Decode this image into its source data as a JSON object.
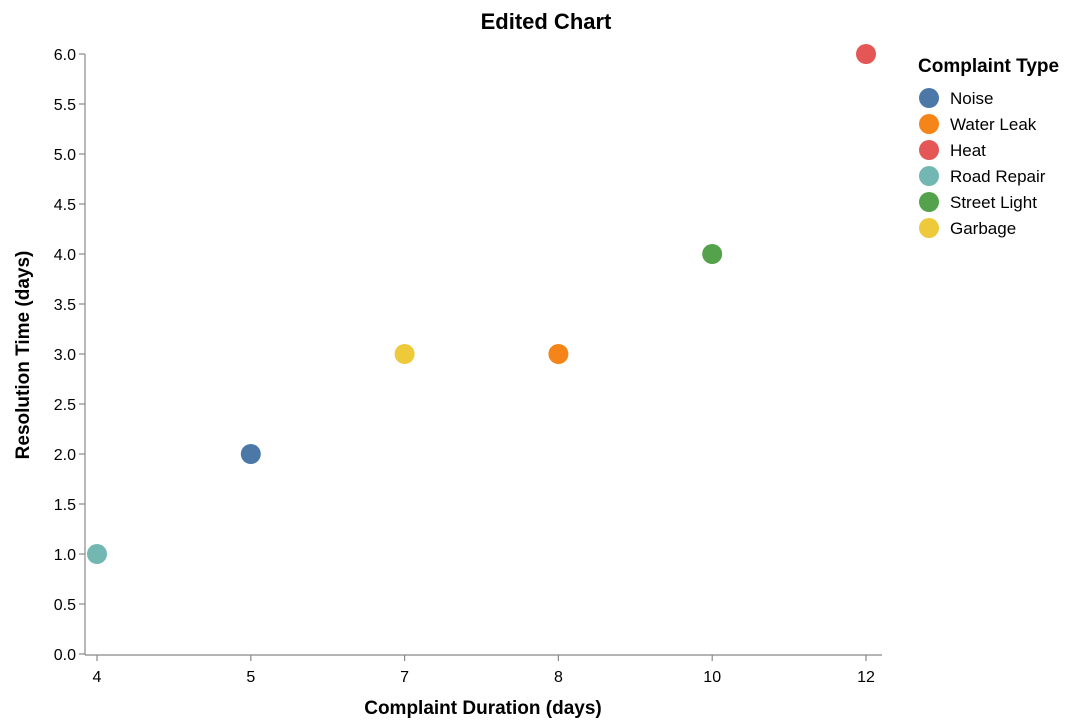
{
  "chart_data": {
    "type": "scatter",
    "title": "Edited Chart",
    "xlabel": "Complaint Duration (days)",
    "ylabel": "Resolution Time (days)",
    "x_ticks": [
      "4",
      "5",
      "7",
      "8",
      "10",
      "12"
    ],
    "y_ticks": [
      0.0,
      0.5,
      1.0,
      1.5,
      2.0,
      2.5,
      3.0,
      3.5,
      4.0,
      4.5,
      5.0,
      5.5,
      6.0
    ],
    "ylim": [
      0,
      6
    ],
    "grid": false,
    "legend": {
      "title": "Complaint Type",
      "placement": "right",
      "entries": [
        {
          "label": "Noise",
          "color": "#4c78a8"
        },
        {
          "label": "Water Leak",
          "color": "#f58518"
        },
        {
          "label": "Heat",
          "color": "#e45756"
        },
        {
          "label": "Road Repair",
          "color": "#72b7b2"
        },
        {
          "label": "Street Light",
          "color": "#54a24b"
        },
        {
          "label": "Garbage",
          "color": "#eeca3b"
        }
      ]
    },
    "points": [
      {
        "x": "5",
        "y": 2,
        "type": "Noise"
      },
      {
        "x": "8",
        "y": 3,
        "type": "Water Leak"
      },
      {
        "x": "12",
        "y": 6,
        "type": "Heat"
      },
      {
        "x": "4",
        "y": 1,
        "type": "Road Repair"
      },
      {
        "x": "10",
        "y": 4,
        "type": "Street Light"
      },
      {
        "x": "7",
        "y": 3,
        "type": "Garbage"
      }
    ]
  }
}
